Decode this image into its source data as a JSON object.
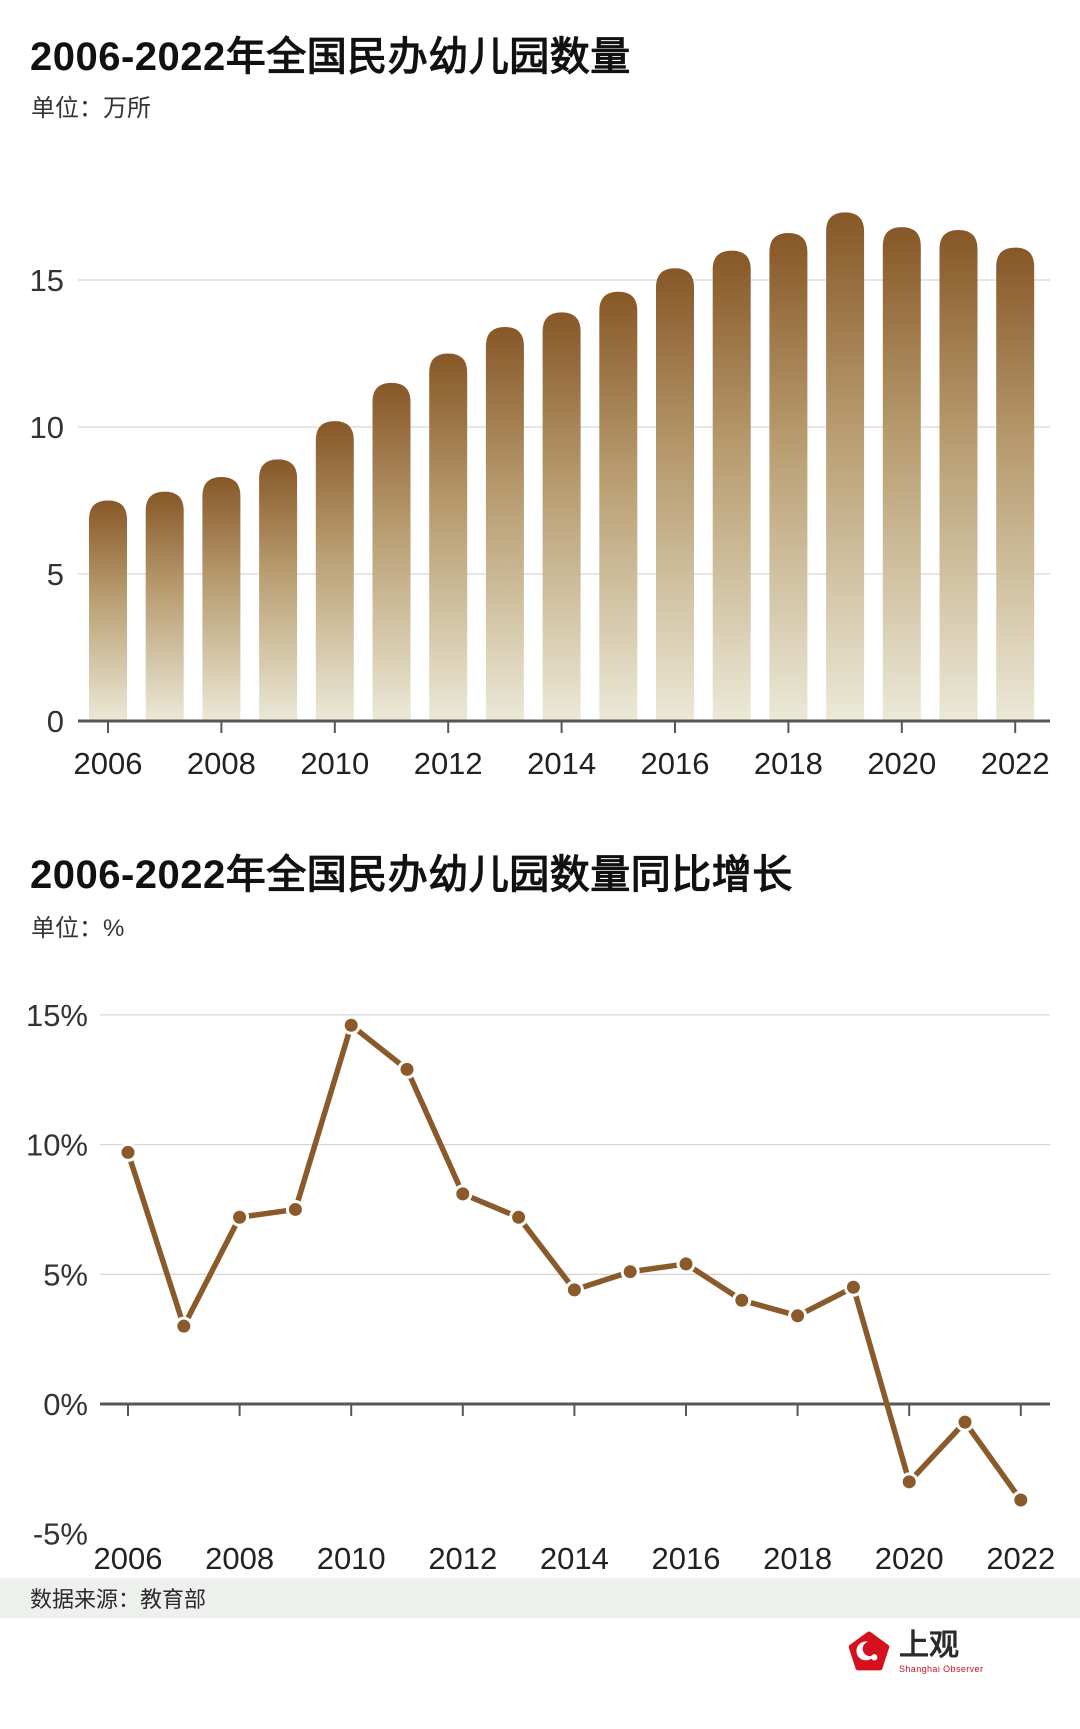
{
  "charts": [
    {
      "title": "2006-2022年全国民办幼儿园数量",
      "unit_label": "单位：万所",
      "chart_data": {
        "type": "bar",
        "title": "2006-2022年全国民办幼儿园数量",
        "ylabel": "万所",
        "categories": [
          2006,
          2007,
          2008,
          2009,
          2010,
          2011,
          2012,
          2013,
          2014,
          2015,
          2016,
          2017,
          2018,
          2019,
          2020,
          2021,
          2022
        ],
        "values": [
          7.5,
          7.8,
          8.3,
          8.9,
          10.2,
          11.5,
          12.5,
          13.4,
          13.9,
          14.6,
          15.4,
          16.0,
          16.6,
          17.3,
          16.8,
          16.7,
          16.1
        ],
        "ylim": [
          0,
          18.3
        ],
        "grid": true,
        "x_tick_labels": [
          "2006",
          "2008",
          "2010",
          "2012",
          "2014",
          "2016",
          "2018",
          "2020",
          "2022"
        ],
        "y_ticks": [
          {
            "value": 0,
            "label": "0",
            "gridline": false
          },
          {
            "value": 5,
            "label": "5",
            "gridline": true
          },
          {
            "value": 10,
            "label": "10",
            "gridline": true
          },
          {
            "value": 15,
            "label": "15",
            "gridline": true
          }
        ],
        "bar_color_top": "#875727",
        "bar_color_mid": "#b79b6e",
        "bar_color_bottom": "#ebe9d7"
      }
    },
    {
      "title": "2006-2022年全国民办幼儿园数量同比增长",
      "unit_label": "单位：%",
      "chart_data": {
        "type": "line",
        "title": "2006-2022年全国民办幼儿园数量同比增长",
        "ylabel": "%",
        "categories": [
          2006,
          2007,
          2008,
          2009,
          2010,
          2011,
          2012,
          2013,
          2014,
          2015,
          2016,
          2017,
          2018,
          2019,
          2020,
          2021,
          2022
        ],
        "values": [
          9.7,
          3.0,
          7.2,
          7.5,
          14.6,
          12.9,
          8.1,
          7.2,
          4.4,
          5.1,
          5.4,
          4.0,
          3.4,
          4.5,
          -3.0,
          -0.7,
          -3.7
        ],
        "ylim": [
          -5,
          15
        ],
        "grid": true,
        "x_tick_labels": [
          "2006",
          "2008",
          "2010",
          "2012",
          "2014",
          "2016",
          "2018",
          "2020",
          "2022"
        ],
        "y_ticks": [
          {
            "value": 15,
            "label": "15%",
            "gridline": true
          },
          {
            "value": 10,
            "label": "10%",
            "gridline": true
          },
          {
            "value": 5,
            "label": "5%",
            "gridline": true
          },
          {
            "value": 0,
            "label": "0%",
            "gridline": false
          },
          {
            "value": -5,
            "label": "-5%",
            "gridline": false
          }
        ],
        "line_color": "#8a5a2b",
        "marker_color": "#8a5a2b"
      }
    }
  ],
  "theme": {
    "grid_color": "#d8d8d8",
    "axis_color": "#55565a",
    "tick_text_color": "#333333"
  },
  "footer": {
    "source": "数据来源：教育部"
  },
  "logo": {
    "name": "上观",
    "subtitle": "Shanghai Observer",
    "brand_color": "#d5101f"
  }
}
